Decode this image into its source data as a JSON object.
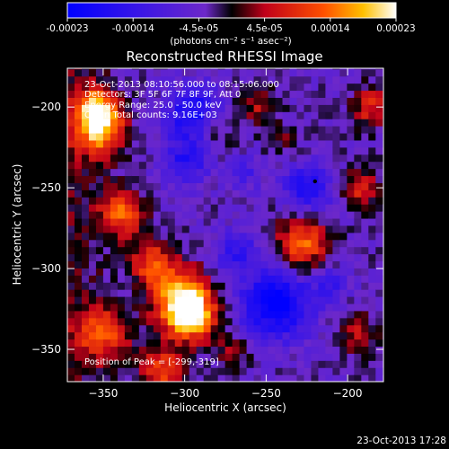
{
  "chart_data": {
    "type": "heatmap",
    "title": "Reconstructed RHESSI Image",
    "xlabel": "Heliocentric X (arcsec)",
    "ylabel": "Heliocentric Y (arcsec)",
    "xlim": [
      -372,
      -178
    ],
    "ylim": [
      -370,
      -176
    ],
    "x_ticks": [
      -350,
      -300,
      -250,
      -200
    ],
    "y_ticks": [
      -200,
      -250,
      -300,
      -350
    ],
    "colorbar": {
      "range": [
        -0.00023,
        0.00023
      ],
      "tick_labels": [
        "-0.00023",
        "-0.00014",
        "-4.5e-05",
        "4.5e-05",
        "0.00014",
        "0.00023"
      ],
      "unit_label": "(photons cm⁻² s⁻¹ asec⁻²)"
    },
    "annotations": [
      "23-Oct-2013 08:10:56.000 to 08:15:06.000",
      "Detectors: 3F 5F 6F 7F 8F 9F, Att 0",
      "Energy Range: 25.0 - 50.0 keV",
      "Clean     Total counts: 9.16E+03"
    ],
    "peak_label": "Position of Peak = [-299,-319]",
    "peak_position": [
      -299,
      -319
    ],
    "marker_position": [
      -220,
      -246
    ],
    "timestamp": "23-Oct-2013 17:28",
    "bright_regions": [
      {
        "x": -352,
        "y": -214,
        "r": 11,
        "v": 0.0002
      },
      {
        "x": -355,
        "y": -200,
        "r": 9,
        "v": 0.00017
      },
      {
        "x": -338,
        "y": -266,
        "r": 10,
        "v": 0.00016
      },
      {
        "x": -302,
        "y": -318,
        "r": 13,
        "v": 0.00023
      },
      {
        "x": -296,
        "y": -330,
        "r": 10,
        "v": 0.00021
      },
      {
        "x": -320,
        "y": -296,
        "r": 9,
        "v": 0.00015
      },
      {
        "x": -350,
        "y": -340,
        "r": 12,
        "v": 0.00014
      },
      {
        "x": -314,
        "y": -362,
        "r": 10,
        "v": 0.00015
      },
      {
        "x": -282,
        "y": -212,
        "r": 9,
        "v": 0.0001
      },
      {
        "x": -255,
        "y": -198,
        "r": 8,
        "v": 9e-05
      },
      {
        "x": -228,
        "y": -284,
        "r": 11,
        "v": 0.00018
      },
      {
        "x": -192,
        "y": -250,
        "r": 8,
        "v": 0.00013
      },
      {
        "x": -185,
        "y": -200,
        "r": 9,
        "v": 0.00012
      },
      {
        "x": -195,
        "y": -340,
        "r": 9,
        "v": 9e-05
      },
      {
        "x": -270,
        "y": -350,
        "r": 8,
        "v": 7e-05
      },
      {
        "x": -240,
        "y": -220,
        "r": 7,
        "v": 5e-05
      }
    ],
    "dark_regions": [
      {
        "x": -293,
        "y": -205,
        "r": 12,
        "v": -0.00018
      },
      {
        "x": -300,
        "y": -235,
        "r": 10,
        "v": -0.00012
      },
      {
        "x": -244,
        "y": -322,
        "r": 15,
        "v": -0.0002
      },
      {
        "x": -224,
        "y": -250,
        "r": 10,
        "v": -0.00015
      },
      {
        "x": -268,
        "y": -290,
        "r": 10,
        "v": -0.0001
      },
      {
        "x": -210,
        "y": -310,
        "r": 8,
        "v": -8e-05
      },
      {
        "x": -262,
        "y": -240,
        "r": 8,
        "v": -6e-05
      }
    ]
  }
}
